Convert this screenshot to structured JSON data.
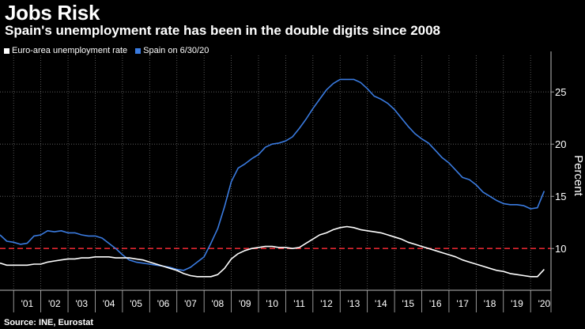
{
  "header": {
    "title": "Jobs Risk",
    "subtitle": "Spain's unemployment rate has been in the double digits since 2008"
  },
  "legend": [
    {
      "label": "Euro-area unemployment rate",
      "color": "#ffffff"
    },
    {
      "label": "Spain on 6/30/20",
      "color": "#3a7be0"
    }
  ],
  "source": "Source: INE, Eurostat",
  "chart_data": {
    "type": "line",
    "title": "Jobs Risk",
    "subtitle": "Spain's unemployment rate has been in the double digits since 2008",
    "ylabel": "Percent",
    "xlabel": "",
    "ylim": [
      6,
      28.5
    ],
    "xlim": [
      2000.5,
      2020.75
    ],
    "yticks": [
      10,
      15,
      20,
      25
    ],
    "xticks": [
      "'01",
      "'02",
      "'03",
      "'04",
      "'05",
      "'06",
      "'07",
      "'08",
      "'09",
      "'10",
      "'11",
      "'12",
      "'13",
      "'14",
      "'15",
      "'16",
      "'17",
      "'18",
      "'19",
      "'20"
    ],
    "reference_line": {
      "value": 10,
      "color": "#e0262f",
      "style": "dashed"
    },
    "series": [
      {
        "name": "Spain on 6/30/20",
        "color": "#3a7be0",
        "x": [
          2000.5,
          2000.75,
          2001.0,
          2001.25,
          2001.5,
          2001.75,
          2002.0,
          2002.25,
          2002.5,
          2002.75,
          2003.0,
          2003.25,
          2003.5,
          2003.75,
          2004.0,
          2004.25,
          2004.5,
          2004.75,
          2005.0,
          2005.25,
          2005.5,
          2005.75,
          2006.0,
          2006.25,
          2006.5,
          2006.75,
          2007.0,
          2007.25,
          2007.5,
          2007.75,
          2008.0,
          2008.25,
          2008.5,
          2008.75,
          2009.0,
          2009.25,
          2009.5,
          2009.75,
          2010.0,
          2010.25,
          2010.5,
          2010.75,
          2011.0,
          2011.25,
          2011.5,
          2011.75,
          2012.0,
          2012.25,
          2012.5,
          2012.75,
          2013.0,
          2013.25,
          2013.5,
          2013.75,
          2014.0,
          2014.25,
          2014.5,
          2014.75,
          2015.0,
          2015.25,
          2015.5,
          2015.75,
          2016.0,
          2016.25,
          2016.5,
          2016.75,
          2017.0,
          2017.25,
          2017.5,
          2017.75,
          2018.0,
          2018.25,
          2018.5,
          2018.75,
          2019.0,
          2019.25,
          2019.5,
          2019.75,
          2020.0,
          2020.25,
          2020.5
        ],
        "values": [
          11.3,
          10.7,
          10.6,
          10.4,
          10.5,
          11.2,
          11.3,
          11.7,
          11.6,
          11.7,
          11.5,
          11.5,
          11.3,
          11.2,
          11.2,
          11.0,
          10.5,
          10.0,
          9.4,
          8.9,
          8.7,
          8.6,
          8.5,
          8.4,
          8.3,
          8.2,
          8.0,
          7.9,
          8.2,
          8.7,
          9.2,
          10.5,
          11.9,
          14.0,
          16.4,
          17.7,
          18.1,
          18.6,
          19.0,
          19.7,
          20.0,
          20.1,
          20.3,
          20.7,
          21.5,
          22.4,
          23.4,
          24.3,
          25.2,
          25.8,
          26.2,
          26.2,
          26.2,
          25.9,
          25.3,
          24.6,
          24.3,
          23.9,
          23.3,
          22.5,
          21.7,
          21.0,
          20.5,
          20.1,
          19.4,
          18.7,
          18.2,
          17.5,
          16.8,
          16.6,
          16.1,
          15.4,
          15.0,
          14.6,
          14.3,
          14.2,
          14.2,
          14.1,
          13.8,
          13.9,
          15.5
        ]
      },
      {
        "name": "Euro-area unemployment rate",
        "color": "#ffffff",
        "x": [
          2000.5,
          2000.75,
          2001.0,
          2001.25,
          2001.5,
          2001.75,
          2002.0,
          2002.25,
          2002.5,
          2002.75,
          2003.0,
          2003.25,
          2003.5,
          2003.75,
          2004.0,
          2004.25,
          2004.5,
          2004.75,
          2005.0,
          2005.25,
          2005.5,
          2005.75,
          2006.0,
          2006.25,
          2006.5,
          2006.75,
          2007.0,
          2007.25,
          2007.5,
          2007.75,
          2008.0,
          2008.25,
          2008.5,
          2008.75,
          2009.0,
          2009.25,
          2009.5,
          2009.75,
          2010.0,
          2010.25,
          2010.5,
          2010.75,
          2011.0,
          2011.25,
          2011.5,
          2011.75,
          2012.0,
          2012.25,
          2012.5,
          2012.75,
          2013.0,
          2013.25,
          2013.5,
          2013.75,
          2014.0,
          2014.25,
          2014.5,
          2014.75,
          2015.0,
          2015.25,
          2015.5,
          2015.75,
          2016.0,
          2016.25,
          2016.5,
          2016.75,
          2017.0,
          2017.25,
          2017.5,
          2017.75,
          2018.0,
          2018.25,
          2018.5,
          2018.75,
          2019.0,
          2019.25,
          2019.5,
          2019.75,
          2020.0,
          2020.25,
          2020.5
        ],
        "values": [
          8.6,
          8.4,
          8.4,
          8.4,
          8.4,
          8.5,
          8.5,
          8.7,
          8.8,
          8.9,
          9.0,
          9.0,
          9.1,
          9.1,
          9.2,
          9.2,
          9.2,
          9.1,
          9.1,
          9.1,
          9.0,
          8.9,
          8.7,
          8.5,
          8.3,
          8.1,
          7.9,
          7.6,
          7.4,
          7.3,
          7.3,
          7.3,
          7.5,
          8.1,
          9.0,
          9.5,
          9.8,
          10.0,
          10.1,
          10.2,
          10.2,
          10.1,
          10.1,
          10.0,
          10.1,
          10.5,
          10.9,
          11.3,
          11.5,
          11.8,
          12.0,
          12.1,
          12.0,
          11.8,
          11.7,
          11.6,
          11.5,
          11.3,
          11.1,
          10.9,
          10.6,
          10.4,
          10.2,
          10.0,
          9.8,
          9.6,
          9.4,
          9.2,
          8.9,
          8.7,
          8.5,
          8.3,
          8.1,
          7.9,
          7.8,
          7.6,
          7.5,
          7.4,
          7.3,
          7.3,
          8.0
        ]
      }
    ]
  }
}
